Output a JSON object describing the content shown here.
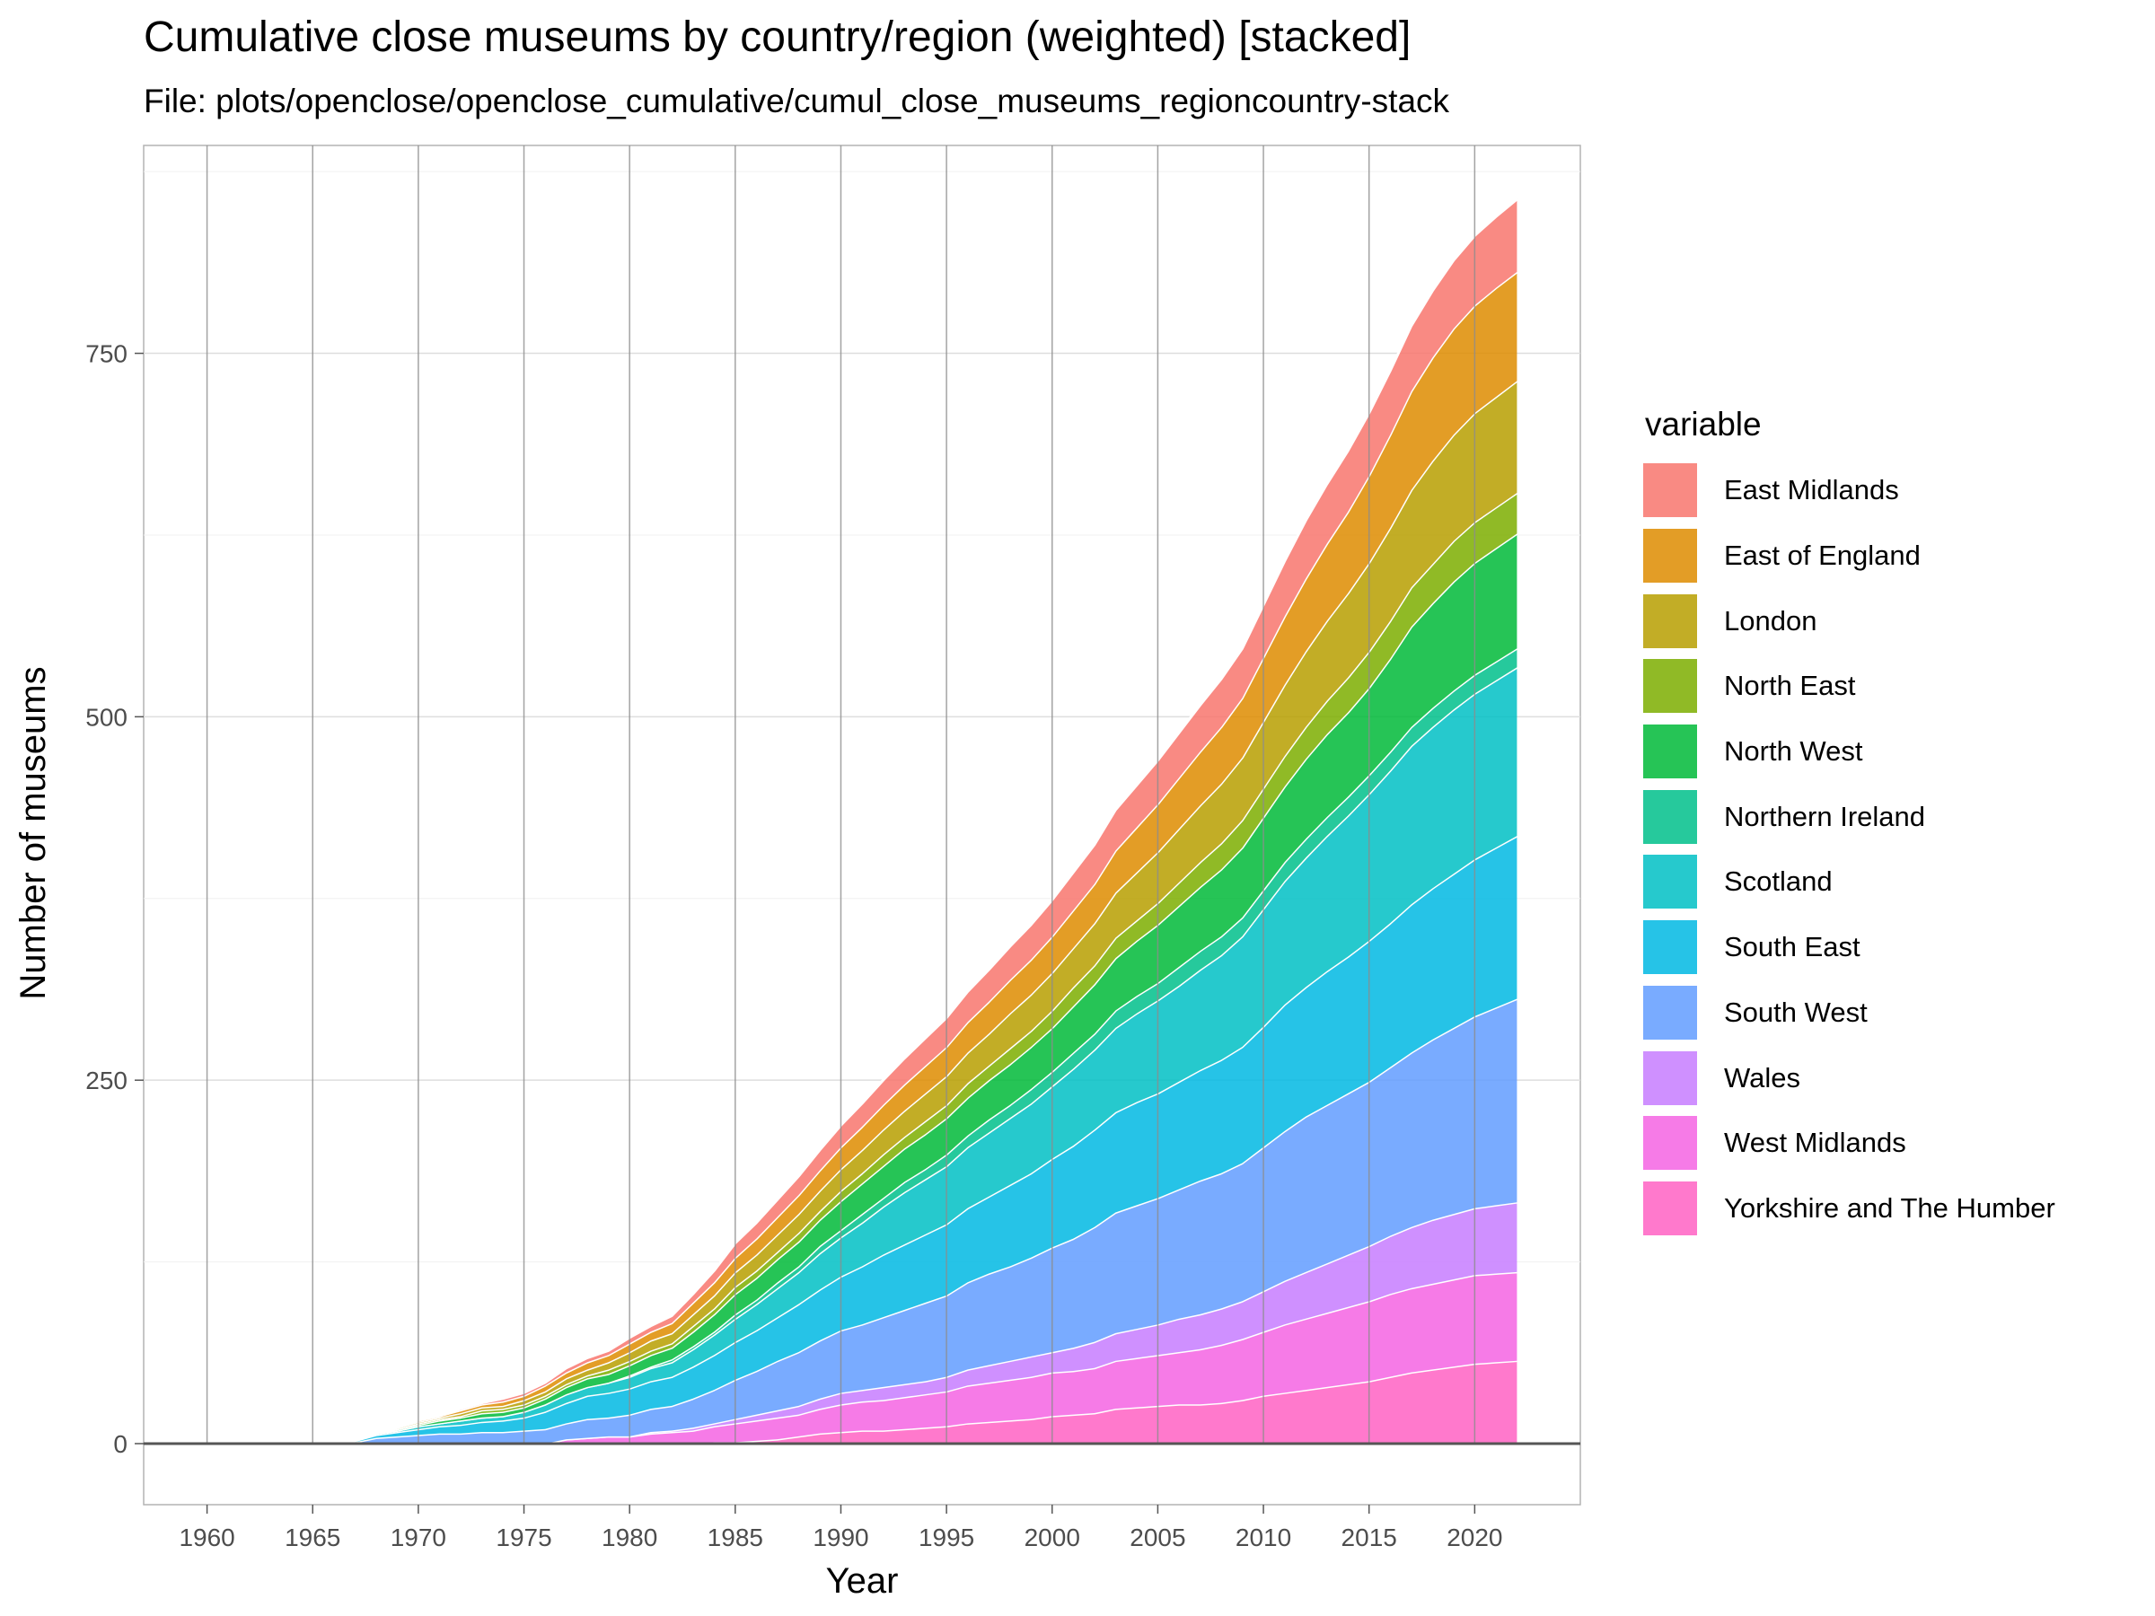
{
  "chart_data": {
    "type": "area",
    "stacked": true,
    "title": "Cumulative close museums by country/region (weighted) [stacked]",
    "subtitle": "File: plots/openclose/openclose_cumulative/cumul_close_museums_regioncountry-stack",
    "xlabel": "Year",
    "ylabel": "Number of museums",
    "legend_title": "variable",
    "legend_position": "right",
    "grid": true,
    "xlim": [
      1957,
      2025
    ],
    "ylim": [
      -42,
      893
    ],
    "x_ticks": [
      1960,
      1965,
      1970,
      1975,
      1980,
      1985,
      1990,
      1995,
      2000,
      2005,
      2010,
      2015,
      2020
    ],
    "y_ticks": [
      0,
      250,
      500,
      750
    ],
    "x": [
      1960,
      1965,
      1966,
      1967,
      1968,
      1969,
      1970,
      1971,
      1972,
      1973,
      1974,
      1975,
      1976,
      1977,
      1978,
      1979,
      1980,
      1981,
      1982,
      1983,
      1984,
      1985,
      1986,
      1987,
      1988,
      1989,
      1990,
      1991,
      1992,
      1993,
      1994,
      1995,
      1996,
      1997,
      1998,
      1999,
      2000,
      2001,
      2002,
      2003,
      2004,
      2005,
      2006,
      2007,
      2008,
      2009,
      2010,
      2011,
      2012,
      2013,
      2014,
      2015,
      2016,
      2017,
      2018,
      2019,
      2020,
      2021,
      2022
    ],
    "series": [
      {
        "name": "Yorkshire and The Humber",
        "color": "#FF61C3",
        "values": [
          0,
          0,
          0,
          0,
          0,
          0,
          0,
          0,
          0,
          0,
          0,
          0,
          0,
          0,
          0,
          0,
          0,
          0,
          0,
          0,
          1,
          1,
          2,
          3,
          5,
          7,
          8,
          9,
          9,
          10,
          11,
          12,
          14,
          15,
          16,
          17,
          19,
          20,
          21,
          24,
          25,
          26,
          27,
          27,
          28,
          30,
          33,
          35,
          37,
          39,
          41,
          43,
          46,
          49,
          51,
          53,
          55,
          56,
          57
        ]
      },
      {
        "name": "West Midlands",
        "color": "#F564E3",
        "values": [
          0,
          0,
          0,
          0,
          0,
          0,
          0,
          0,
          0,
          0,
          0,
          0,
          0,
          3,
          4,
          5,
          5,
          7,
          8,
          9,
          11,
          13,
          14,
          15,
          15,
          17,
          19,
          20,
          21,
          22,
          23,
          24,
          26,
          27,
          28,
          29,
          30,
          30,
          31,
          33,
          34,
          35,
          36,
          38,
          40,
          42,
          44,
          47,
          49,
          51,
          53,
          55,
          57,
          58,
          59,
          60,
          61,
          61,
          61
        ]
      },
      {
        "name": "Wales",
        "color": "#C77CFF",
        "values": [
          0,
          0,
          0,
          0,
          0,
          0,
          0,
          0,
          0,
          0,
          0,
          0,
          0,
          0,
          0,
          0,
          0,
          1,
          1,
          2,
          2,
          3,
          4,
          5,
          6,
          7,
          8,
          8,
          9,
          9,
          9,
          10,
          11,
          12,
          13,
          14,
          14,
          16,
          18,
          19,
          20,
          21,
          23,
          24,
          25,
          26,
          28,
          30,
          32,
          34,
          36,
          38,
          40,
          42,
          44,
          45,
          46,
          47,
          48
        ]
      },
      {
        "name": "South West",
        "color": "#619CFF",
        "values": [
          0,
          0,
          0,
          1,
          4,
          5,
          6,
          7,
          7,
          8,
          8,
          9,
          10,
          11,
          13,
          13,
          15,
          16,
          17,
          20,
          23,
          27,
          30,
          34,
          37,
          40,
          43,
          45,
          48,
          51,
          54,
          56,
          60,
          63,
          65,
          68,
          72,
          75,
          79,
          83,
          85,
          87,
          89,
          92,
          93,
          95,
          99,
          103,
          107,
          109,
          111,
          113,
          116,
          120,
          124,
          128,
          132,
          136,
          140
        ]
      },
      {
        "name": "South East",
        "color": "#00B9E3",
        "values": [
          0,
          0,
          0,
          1,
          2,
          3,
          4,
          5,
          6,
          7,
          8,
          9,
          12,
          14,
          16,
          17,
          18,
          19,
          20,
          22,
          24,
          26,
          28,
          30,
          33,
          35,
          37,
          40,
          43,
          45,
          47,
          49,
          51,
          53,
          56,
          58,
          61,
          64,
          67,
          69,
          71,
          72,
          74,
          76,
          78,
          80,
          83,
          87,
          89,
          92,
          94,
          97,
          99,
          102,
          104,
          106,
          108,
          110,
          112
        ]
      },
      {
        "name": "Scotland",
        "color": "#00BFC4",
        "values": [
          0,
          0,
          0,
          0,
          1,
          1,
          2,
          2,
          3,
          3,
          3,
          4,
          5,
          6,
          6,
          7,
          8,
          9,
          10,
          12,
          14,
          16,
          18,
          20,
          22,
          25,
          27,
          30,
          33,
          36,
          38,
          40,
          42,
          44,
          46,
          48,
          50,
          53,
          55,
          58,
          61,
          64,
          66,
          69,
          72,
          76,
          81,
          85,
          89,
          93,
          97,
          101,
          105,
          109,
          111,
          113,
          114,
          115,
          116
        ]
      },
      {
        "name": "Northern Ireland",
        "color": "#00C08B",
        "values": [
          0,
          0,
          0,
          0,
          0,
          0,
          0,
          0,
          0,
          0,
          0,
          0,
          0,
          0,
          0,
          0,
          1,
          1,
          2,
          2,
          2,
          3,
          3,
          4,
          4,
          5,
          5,
          6,
          6,
          7,
          7,
          8,
          8,
          9,
          9,
          10,
          10,
          11,
          11,
          12,
          12,
          12,
          13,
          13,
          13,
          13,
          13,
          13,
          13,
          13,
          13,
          13,
          13,
          13,
          13,
          13,
          13,
          13,
          13
        ]
      },
      {
        "name": "North West",
        "color": "#00BA38",
        "values": [
          0,
          0,
          0,
          0,
          0,
          1,
          1,
          2,
          2,
          3,
          3,
          3,
          4,
          5,
          6,
          6,
          7,
          8,
          8,
          10,
          12,
          14,
          15,
          16,
          17,
          18,
          20,
          21,
          22,
          23,
          24,
          25,
          26,
          27,
          28,
          29,
          30,
          32,
          34,
          36,
          38,
          40,
          42,
          44,
          46,
          48,
          50,
          52,
          55,
          57,
          58,
          60,
          64,
          69,
          72,
          75,
          77,
          78,
          79
        ]
      },
      {
        "name": "North East",
        "color": "#7CAE00",
        "values": [
          0,
          0,
          0,
          0,
          0,
          0,
          1,
          1,
          1,
          2,
          2,
          2,
          2,
          2,
          2,
          3,
          3,
          3,
          3,
          4,
          4,
          5,
          5,
          5,
          6,
          6,
          7,
          7,
          8,
          8,
          9,
          9,
          10,
          10,
          11,
          11,
          12,
          13,
          13,
          14,
          14,
          15,
          16,
          17,
          18,
          19,
          20,
          21,
          22,
          23,
          24,
          25,
          26,
          27,
          27,
          28,
          28,
          28,
          28
        ]
      },
      {
        "name": "London",
        "color": "#B79F00",
        "values": [
          0,
          0,
          0,
          0,
          0,
          1,
          1,
          1,
          2,
          2,
          2,
          3,
          3,
          4,
          4,
          5,
          6,
          7,
          7,
          8,
          9,
          10,
          11,
          12,
          13,
          14,
          15,
          16,
          17,
          18,
          19,
          20,
          21,
          22,
          24,
          25,
          26,
          27,
          29,
          31,
          33,
          35,
          37,
          39,
          41,
          43,
          46,
          49,
          52,
          55,
          58,
          61,
          64,
          67,
          71,
          73,
          75,
          76,
          77
        ]
      },
      {
        "name": "East of England",
        "color": "#DE8C00",
        "values": [
          0,
          0,
          0,
          0,
          0,
          0,
          1,
          1,
          2,
          2,
          3,
          3,
          4,
          4,
          5,
          5,
          6,
          6,
          7,
          8,
          9,
          10,
          11,
          12,
          13,
          14,
          15,
          16,
          17,
          18,
          19,
          20,
          21,
          22,
          23,
          24,
          25,
          26,
          27,
          29,
          31,
          33,
          35,
          37,
          39,
          41,
          44,
          47,
          50,
          53,
          56,
          60,
          64,
          68,
          71,
          73,
          74,
          75,
          75
        ]
      },
      {
        "name": "East Midlands",
        "color": "#F8766D",
        "values": [
          0,
          0,
          0,
          0,
          0,
          0,
          0,
          0,
          1,
          1,
          2,
          2,
          2,
          3,
          3,
          3,
          4,
          4,
          5,
          6,
          8,
          10,
          11,
          12,
          13,
          14,
          15,
          16,
          17,
          18,
          19,
          20,
          21,
          22,
          23,
          24,
          25,
          26,
          27,
          28,
          29,
          30,
          31,
          32,
          33,
          34,
          36,
          38,
          40,
          41,
          42,
          43,
          44,
          45,
          46,
          47,
          48,
          49,
          50
        ]
      }
    ]
  }
}
